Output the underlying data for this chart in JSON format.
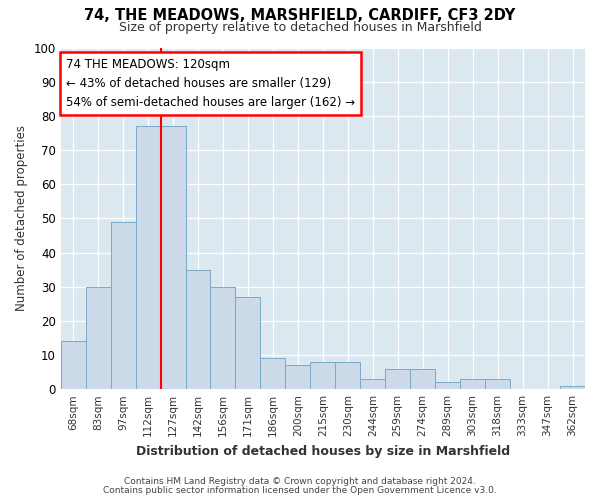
{
  "title1": "74, THE MEADOWS, MARSHFIELD, CARDIFF, CF3 2DY",
  "title2": "Size of property relative to detached houses in Marshfield",
  "xlabel": "Distribution of detached houses by size in Marshfield",
  "ylabel": "Number of detached properties",
  "categories": [
    "68sqm",
    "83sqm",
    "97sqm",
    "112sqm",
    "127sqm",
    "142sqm",
    "156sqm",
    "171sqm",
    "186sqm",
    "200sqm",
    "215sqm",
    "230sqm",
    "244sqm",
    "259sqm",
    "274sqm",
    "289sqm",
    "303sqm",
    "318sqm",
    "333sqm",
    "347sqm",
    "362sqm"
  ],
  "values": [
    14,
    30,
    49,
    77,
    77,
    35,
    30,
    27,
    9,
    7,
    8,
    8,
    3,
    6,
    6,
    2,
    3,
    3,
    0,
    0,
    1
  ],
  "bar_color": "#ccd9e8",
  "bar_edge_color": "#7aaac8",
  "bar_edge_width": 0.7,
  "red_line_index": 3.5,
  "ylim": [
    0,
    100
  ],
  "yticks": [
    0,
    10,
    20,
    30,
    40,
    50,
    60,
    70,
    80,
    90,
    100
  ],
  "annotation_text": "74 THE MEADOWS: 120sqm\n← 43% of detached houses are smaller (129)\n54% of semi-detached houses are larger (162) →",
  "annotation_box_color": "white",
  "annotation_box_edge_color": "red",
  "footer1": "Contains HM Land Registry data © Crown copyright and database right 2024.",
  "footer2": "Contains public sector information licensed under the Open Government Licence v3.0.",
  "fig_background_color": "#ffffff",
  "plot_background_color": "#dce8f0"
}
